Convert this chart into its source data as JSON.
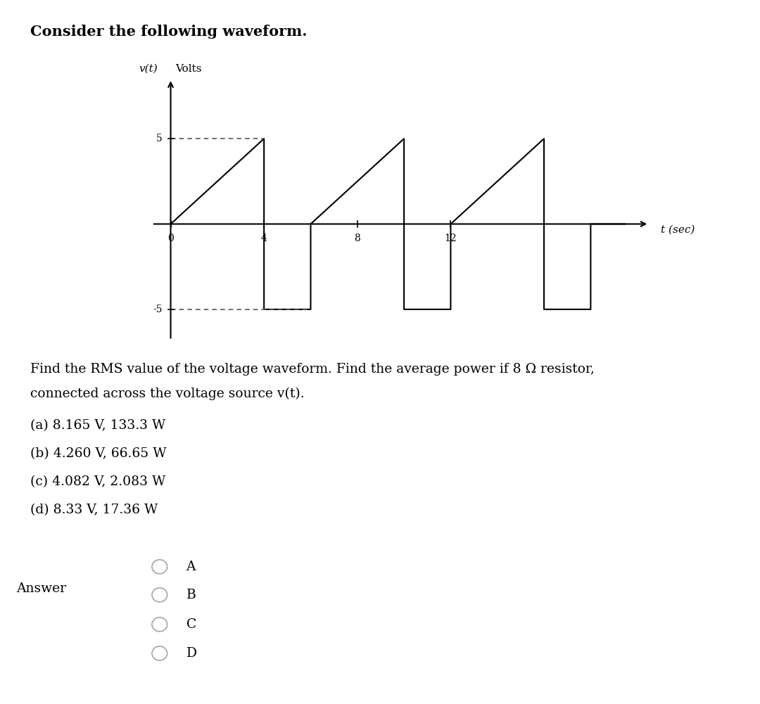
{
  "title": "Consider the following waveform.",
  "graph_ylabel": "v(t)",
  "graph_ylabel2": "Volts",
  "graph_xlabel": "t (sec)",
  "ylim": [
    -7.5,
    9
  ],
  "xlim": [
    -0.8,
    22
  ],
  "waveform_color": "#000000",
  "dotted_color": "#555555",
  "question_line1": "Find the RMS value of the voltage waveform. Find the average power if 8 Ω resistor,",
  "question_line2": "connected across the voltage source v(t).",
  "choices": [
    "(a) 8.165 V, 133.3 W",
    "(b) 4.260 V, 66.65 W",
    "(c) 4.082 V, 2.083 W",
    "(d) 8.33 V, 17.36 W"
  ],
  "answer_label": "Answer",
  "radio_options": [
    "A",
    "B",
    "C",
    "D"
  ],
  "background_color": "#ffffff",
  "answer_box_color": "#f0f0f5"
}
